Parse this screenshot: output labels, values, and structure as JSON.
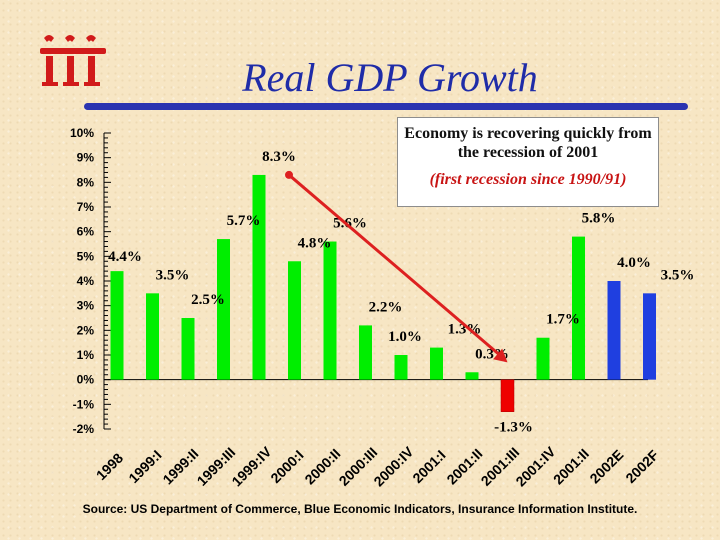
{
  "header": {
    "title": "Real GDP Growth",
    "logo_text": "iii"
  },
  "annotation": {
    "main": "Economy is recovering quickly from the recession of 2001",
    "sub": "(first recession since 1990/91)"
  },
  "source": "Source: US Department of Commerce, Blue Economic Indicators, Insurance Information Institute.",
  "colors": {
    "actual": "#00ee00",
    "negative": "#ee0000",
    "forecast": "#1f3fe0",
    "arrow": "#dd2020",
    "title": "#1f2ca8"
  },
  "chart_data": {
    "type": "bar",
    "title": "Real GDP Growth",
    "xlabel": "",
    "ylabel": "",
    "ylim": [
      -2,
      10
    ],
    "yticks": [
      10,
      9,
      8,
      7,
      6,
      5,
      4,
      3,
      2,
      1,
      0,
      -1,
      -2
    ],
    "ytick_labels": [
      "10%",
      "9%",
      "8%",
      "7%",
      "6%",
      "5%",
      "4%",
      "3%",
      "2%",
      "1%",
      "0%",
      "-1%",
      "-2%"
    ],
    "grid": false,
    "categories": [
      "1998",
      "1999:I",
      "1999:II",
      "1999:III",
      "1999:IV",
      "2000:I",
      "2000:II",
      "2000:III",
      "2000:IV",
      "2001:I",
      "2001:II",
      "2001:III",
      "2001:IV",
      "2001:II",
      "2002E",
      "2002F"
    ],
    "values": [
      4.4,
      3.5,
      2.5,
      5.7,
      8.3,
      4.8,
      5.6,
      2.2,
      1.0,
      1.3,
      0.3,
      -1.3,
      1.7,
      5.8,
      4.0,
      3.5
    ],
    "labels": [
      "4.4%",
      "3.5%",
      "2.5%",
      "5.7%",
      "8.3%",
      "4.8%",
      "5.6%",
      "2.2%",
      "1.0%",
      "1.3%",
      "0.3%",
      "-1.3%",
      "1.7%",
      "5.8%",
      "4.0%",
      "3.5%"
    ],
    "bar_kind": [
      "actual",
      "actual",
      "actual",
      "actual",
      "actual",
      "actual",
      "actual",
      "actual",
      "actual",
      "actual",
      "actual",
      "negative",
      "actual",
      "actual",
      "forecast",
      "forecast"
    ],
    "trend_arrow": {
      "from_category": "1999:IV",
      "from_value": 8.3,
      "to_category": "2001:III",
      "to_value": 0.7
    }
  }
}
